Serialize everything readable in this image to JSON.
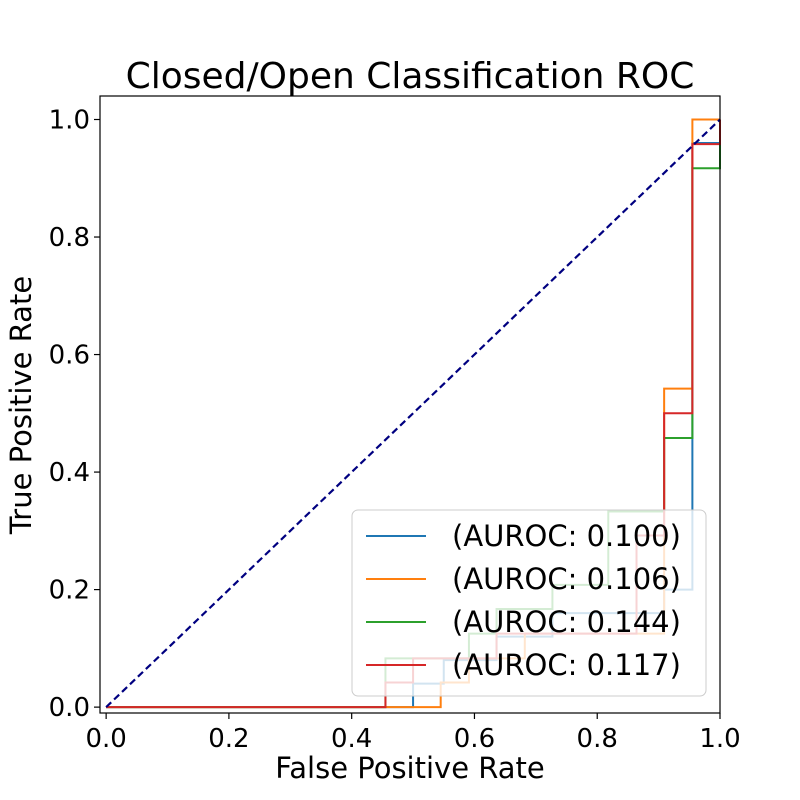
{
  "chart_data": {
    "type": "line",
    "title": "Closed/Open Classification ROC",
    "xlabel": "False Positive Rate",
    "ylabel": "True Positive Rate",
    "xlim": [
      -0.01,
      1.0
    ],
    "ylim": [
      -0.01,
      1.04
    ],
    "xticks": [
      "0.0",
      "0.2",
      "0.4",
      "0.6",
      "0.8",
      "1.0"
    ],
    "yticks": [
      "0.0",
      "0.2",
      "0.4",
      "0.6",
      "0.8",
      "1.0"
    ],
    "grid": false,
    "legend_position": "lower-right",
    "diagonal": {
      "color": "#000080",
      "style": "dashed",
      "points": [
        [
          0,
          0
        ],
        [
          1,
          1
        ]
      ]
    },
    "series": [
      {
        "name": "(AUROC: 0.100)",
        "color": "#1f77b4",
        "points": [
          [
            0,
            0
          ],
          [
            0.5,
            0
          ],
          [
            0.5,
            0.04
          ],
          [
            0.55,
            0.04
          ],
          [
            0.55,
            0.08
          ],
          [
            0.636,
            0.08
          ],
          [
            0.636,
            0.12
          ],
          [
            0.727,
            0.12
          ],
          [
            0.727,
            0.16
          ],
          [
            0.909,
            0.16
          ],
          [
            0.909,
            0.2
          ],
          [
            0.955,
            0.2
          ],
          [
            0.955,
            0.32
          ],
          [
            0.955,
            0.96
          ],
          [
            1,
            0.96
          ],
          [
            1,
            1
          ]
        ]
      },
      {
        "name": "(AUROC: 0.106)",
        "color": "#ff7f0e",
        "points": [
          [
            0,
            0
          ],
          [
            0.545,
            0
          ],
          [
            0.545,
            0.042
          ],
          [
            0.591,
            0.042
          ],
          [
            0.591,
            0.083
          ],
          [
            0.682,
            0.083
          ],
          [
            0.682,
            0.125
          ],
          [
            0.727,
            0.125
          ],
          [
            0.727,
            0.125
          ],
          [
            0.909,
            0.125
          ],
          [
            0.909,
            0.542
          ],
          [
            0.955,
            0.542
          ],
          [
            0.955,
            1
          ],
          [
            1,
            1
          ]
        ]
      },
      {
        "name": "(AUROC: 0.144)",
        "color": "#2ca02c",
        "points": [
          [
            0,
            0
          ],
          [
            0.455,
            0
          ],
          [
            0.455,
            0.083
          ],
          [
            0.5,
            0.083
          ],
          [
            0.5,
            0.083
          ],
          [
            0.591,
            0.083
          ],
          [
            0.591,
            0.125
          ],
          [
            0.636,
            0.125
          ],
          [
            0.636,
            0.167
          ],
          [
            0.727,
            0.167
          ],
          [
            0.727,
            0.208
          ],
          [
            0.818,
            0.208
          ],
          [
            0.818,
            0.333
          ],
          [
            0.909,
            0.333
          ],
          [
            0.909,
            0.458
          ],
          [
            0.955,
            0.458
          ],
          [
            0.955,
            0.917
          ],
          [
            1,
            0.917
          ],
          [
            1,
            1
          ]
        ]
      },
      {
        "name": "(AUROC: 0.117)",
        "color": "#d62728",
        "points": [
          [
            0,
            0
          ],
          [
            0.455,
            0
          ],
          [
            0.455,
            0.042
          ],
          [
            0.5,
            0.042
          ],
          [
            0.5,
            0.083
          ],
          [
            0.545,
            0.083
          ],
          [
            0.545,
            0.083
          ],
          [
            0.636,
            0.083
          ],
          [
            0.636,
            0.125
          ],
          [
            0.864,
            0.125
          ],
          [
            0.864,
            0.292
          ],
          [
            0.909,
            0.292
          ],
          [
            0.909,
            0.5
          ],
          [
            0.955,
            0.5
          ],
          [
            0.955,
            0.958
          ],
          [
            1,
            0.958
          ],
          [
            1,
            1
          ]
        ]
      }
    ]
  }
}
